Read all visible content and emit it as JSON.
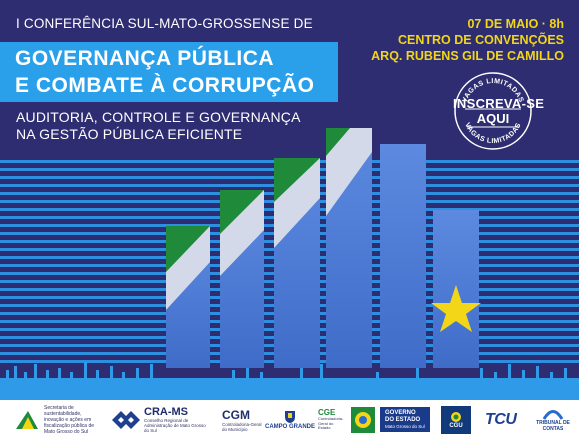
{
  "header": {
    "kicker": "I CONFERÊNCIA SUL-MATO-GROSSENSE DE",
    "title_line1": "GOVERNANÇA PÚBLICA",
    "title_line2": "E COMBATE À CORRUPÇÃO",
    "subtitle_line1": "AUDITORIA, CONTROLE E GOVERNANÇA",
    "subtitle_line2": "NA GESTÃO PÚBLICA EFICIENTE"
  },
  "event": {
    "date_time": "07 DE MAIO · 8h",
    "venue_line1": "CENTRO DE CONVENÇÕES",
    "venue_line2": "ARQ. RUBENS GIL DE CAMILLO"
  },
  "stamp": {
    "top_arc": "VAGAS LIMITADAS",
    "line1": "INSCREVA-SE",
    "line2": "AQUI",
    "bottom_arc": "VAGAS LIMITADAS"
  },
  "colors": {
    "background": "#2f2d72",
    "accent_blue": "#2aa0ea",
    "bar_blue": "#4f7fd8",
    "green": "#1e8a3a",
    "yellow": "#f2d617"
  },
  "footer": {
    "logos": [
      {
        "name": "Secretaria da Sustentabilidade",
        "text": "Secretaria de sustentabilidade, inovação e ações em fiscalização pública de Mato Grosso do Sul"
      },
      {
        "name": "CRA-MS",
        "text": "CRA-MS",
        "sub": "Conselho Regional de Administração de Mato Grosso do Sul"
      },
      {
        "name": "CGM",
        "text": "CGM",
        "sub": "Controladoria-Geral do Município"
      },
      {
        "name": "Campo Grande",
        "text": "CAMPO GRANDE"
      },
      {
        "name": "CGE",
        "text": "CGE",
        "sub": "Controladoria-Geral do Estado"
      },
      {
        "name": "MS emblem",
        "text": ""
      },
      {
        "name": "Governo do Estado",
        "text": "GOVERNO DO ESTADO",
        "sub": "Mato Grosso do Sul"
      },
      {
        "name": "CGU",
        "text": "CGU"
      },
      {
        "name": "TCU",
        "text": "TCU"
      },
      {
        "name": "Tribunal de Contas",
        "text": "TRIBUNAL DE CONTAS"
      }
    ]
  }
}
